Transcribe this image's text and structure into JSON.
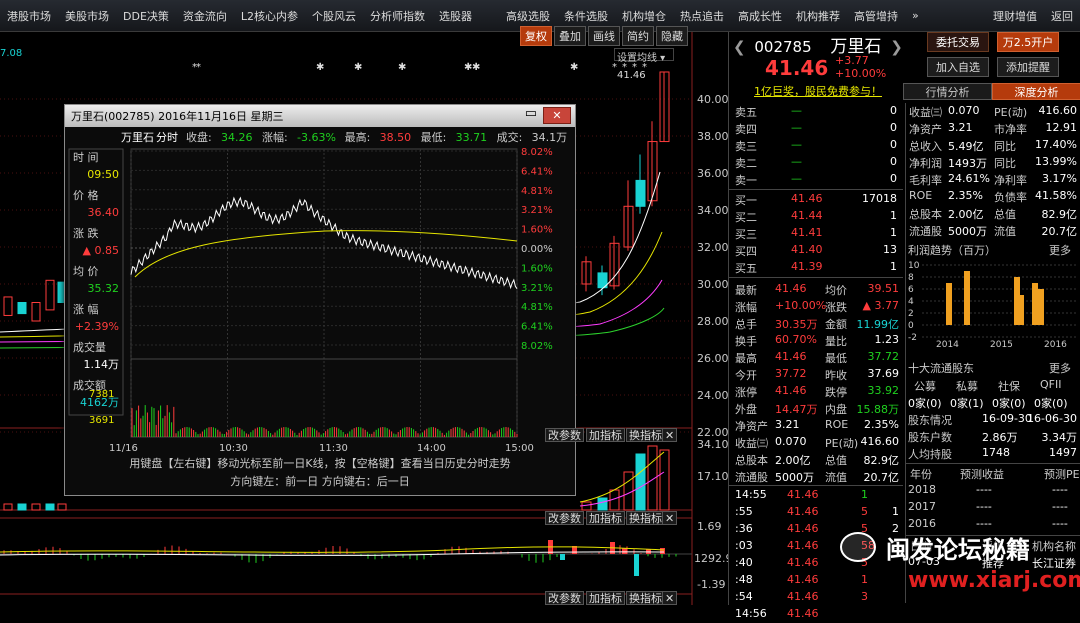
{
  "menu": {
    "items": [
      "港股市场",
      "美股市场",
      "DDE决策",
      "资金流向",
      "L2核心内参",
      "个股风云",
      "分析师指数",
      "选股器",
      "高级选股",
      "条件选股",
      "机构增仓",
      "热点追击",
      "高成长性",
      "机构推荐",
      "高管增持",
      "»"
    ],
    "right": [
      "理财增值",
      "返回"
    ]
  },
  "toolbar": {
    "buttons": [
      "复权",
      "叠加",
      "画线",
      "简约",
      "隐藏"
    ],
    "indicator_label": "设置均线"
  },
  "stock": {
    "code": "002785",
    "name": "万里石",
    "price": "41.46",
    "change": "+3.77",
    "pct": "+10.00%",
    "ad": "1亿巨奖，股民免费参与！",
    "buttons": [
      "委托交易",
      "万2.5开户",
      "加入自选",
      "添加提醒"
    ]
  },
  "tabs": [
    "行情分析",
    "深度分析"
  ],
  "asks": [
    {
      "l": "卖五",
      "p": "—",
      "v": "0"
    },
    {
      "l": "卖四",
      "p": "—",
      "v": "0"
    },
    {
      "l": "卖三",
      "p": "—",
      "v": "0"
    },
    {
      "l": "卖二",
      "p": "—",
      "v": "0"
    },
    {
      "l": "卖一",
      "p": "—",
      "v": "0"
    }
  ],
  "bids": [
    {
      "l": "买一",
      "p": "41.46",
      "v": "17018"
    },
    {
      "l": "买二",
      "p": "41.44",
      "v": "1"
    },
    {
      "l": "买三",
      "p": "41.41",
      "v": "1"
    },
    {
      "l": "买四",
      "p": "41.40",
      "v": "13"
    },
    {
      "l": "买五",
      "p": "41.39",
      "v": "1"
    }
  ],
  "quote": [
    [
      "最新",
      "41.46",
      "均价",
      "39.51"
    ],
    [
      "涨幅",
      "+10.00%",
      "涨跌",
      "▲ 3.77"
    ],
    [
      "总手",
      "30.35万",
      "金额",
      "11.99亿"
    ],
    [
      "换手",
      "60.70%",
      "量比",
      "1.23"
    ],
    [
      "最高",
      "41.46",
      "最低",
      "37.72"
    ],
    [
      "今开",
      "37.72",
      "昨收",
      "37.69"
    ],
    [
      "涨停",
      "41.46",
      "跌停",
      "33.92"
    ],
    [
      "外盘",
      "14.47万",
      "内盘",
      "15.88万"
    ],
    [
      "净资产",
      "3.21",
      "ROE",
      "2.35%"
    ],
    [
      "收益㈢",
      "0.070",
      "PE(动)",
      "416.60"
    ],
    [
      "总股本",
      "2.00亿",
      "总值",
      "82.9亿"
    ],
    [
      "流通股",
      "5000万",
      "流值",
      "20.7亿"
    ]
  ],
  "ticks": [
    {
      "t": "14:55",
      "p": "41.46",
      "v": "1",
      "n": ""
    },
    {
      "t": ":55",
      "p": "41.46",
      "v": "5",
      "n": "1"
    },
    {
      "t": ":36",
      "p": "41.46",
      "v": "5",
      "n": "2"
    },
    {
      "t": ":03",
      "p": "41.46",
      "v": "58",
      "n": "2"
    },
    {
      "t": ":40",
      "p": "41.46",
      "v": "5",
      "n": ""
    },
    {
      "t": ":48",
      "p": "41.46",
      "v": "1",
      "n": ""
    },
    {
      "t": ":54",
      "p": "41.46",
      "v": "3",
      "n": ""
    },
    {
      "t": "14:56",
      "p": "41.46",
      "v": "",
      "n": ""
    }
  ],
  "fund": [
    [
      "收益㈢",
      "0.070",
      "PE(动)",
      "416.60"
    ],
    [
      "净资产",
      "3.21",
      "市净率",
      "12.91"
    ],
    [
      "总收入",
      "5.49亿",
      "同比",
      "17.40%"
    ],
    [
      "净利润",
      "1493万",
      "同比",
      "13.99%"
    ],
    [
      "毛利率",
      "24.61%",
      "净利率",
      "3.17%"
    ],
    [
      "ROE",
      "2.35%",
      "负债率",
      "41.58%"
    ],
    [
      "总股本",
      "2.00亿",
      "总值",
      "82.9亿"
    ],
    [
      "流通股",
      "5000万",
      "流值",
      "20.7亿"
    ]
  ],
  "profit": {
    "title": "利润趋势（百万）",
    "more": "更多",
    "yticks": [
      "10",
      "8",
      "6",
      "4",
      "2",
      "0",
      "-2"
    ],
    "years": [
      "2014",
      "2015",
      "2016"
    ]
  },
  "holders": {
    "title": "十大流通股东",
    "more": "更多",
    "cols": [
      "公募",
      "私募",
      "社保",
      "QFII"
    ],
    "vals": [
      "0家(0)",
      "0家(1)",
      "0家(0)",
      "0家(0)"
    ],
    "rows": [
      [
        "股东情况",
        "16-09-30",
        "16-06-30"
      ],
      [
        "股东户数",
        "2.86万",
        "3.34万"
      ],
      [
        "人均持股",
        "1748",
        "1497"
      ]
    ]
  },
  "forecast": {
    "cols": [
      "年份",
      "预测收益",
      "预测PE"
    ],
    "rows": [
      [
        "2018",
        "----",
        "----"
      ],
      [
        "2017",
        "----",
        "----"
      ],
      [
        "2016",
        "----",
        "----"
      ]
    ]
  },
  "rating": {
    "cols": [
      "日期",
      "评级",
      "机构名称"
    ],
    "row": [
      "07-03",
      "推荐",
      "长江证券"
    ]
  },
  "kline": {
    "yticks": [
      "40.00",
      "38.00",
      "36.00",
      "34.00",
      "32.00",
      "30.00",
      "28.00",
      "26.00",
      "24.00",
      "22.00"
    ],
    "top_label": "41.46",
    "vol_ticks": [
      "34.10",
      "17.10"
    ],
    "macd_ticks": [
      "1.69",
      "1292.91",
      "-1.39"
    ],
    "sub_buttons": [
      "改参数",
      "加指标",
      "换指标",
      "✕"
    ],
    "left_val": "7.08"
  },
  "dialog": {
    "title": "万里石(002785) 2016年11月16日 星期三",
    "header": {
      "name": "万里石",
      "kind": "分时",
      "close_l": "收盘:",
      "close": "34.26",
      "pct_l": "涨幅:",
      "pct": "-3.63%",
      "high_l": "最高:",
      "high": "38.50",
      "low_l": "最低:",
      "low": "33.71",
      "amt_l": "成交:",
      "amt": "34.1万"
    },
    "info": [
      {
        "k": "时 间",
        "v": "09:50",
        "c": "yel"
      },
      {
        "k": "价 格",
        "v": "36.40",
        "c": "red"
      },
      {
        "k": "涨 跌",
        "v": "▲ 0.85",
        "c": "red"
      },
      {
        "k": "均 价",
        "v": "35.32",
        "c": "grn"
      },
      {
        "k": "涨 幅",
        "v": "+2.39%",
        "c": "red"
      },
      {
        "k": "成交量",
        "v": "1.14万",
        "c": "wht"
      },
      {
        "k": "成交额",
        "v": "4162万",
        "c": "cy"
      }
    ],
    "pct_ticks": [
      "8.02%",
      "6.41%",
      "4.81%",
      "3.21%",
      "1.60%",
      "0.00%",
      "1.60%",
      "3.21%",
      "4.81%",
      "6.41%",
      "8.02%"
    ],
    "vol_ticks": [
      "7381",
      "3691"
    ],
    "time_ticks": [
      "11/16",
      "10:30",
      "11:30",
      "14:00",
      "15:00"
    ],
    "hint1": "用键盘【左右键】移动光标至前一日K线，按【空格键】查看当日历史分时走势",
    "hint2": "方向键左：前一日    方向键右：后一日"
  },
  "watermark": {
    "text": "闽发论坛秘籍",
    "url": "www.xiarj.com"
  },
  "colors": {
    "up": "#ff3c3c",
    "down": "#1fd11f",
    "avg": "#e6e600",
    "accent": "#b53b0c"
  }
}
